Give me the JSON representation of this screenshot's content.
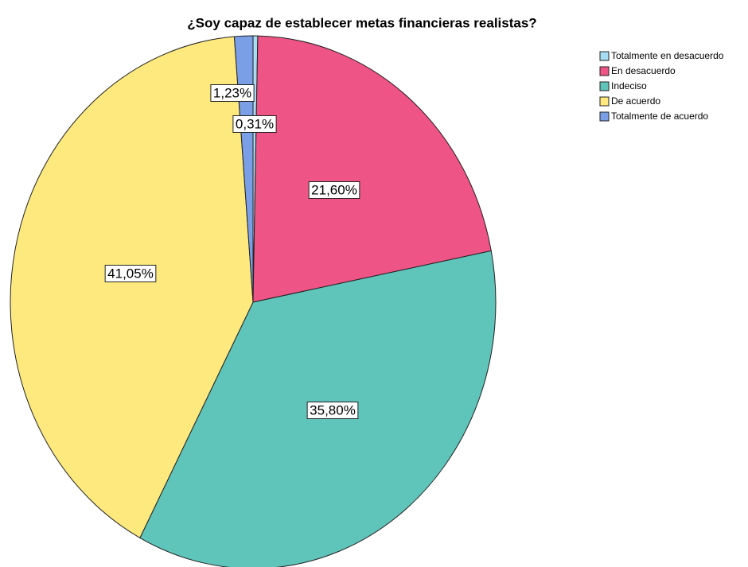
{
  "chart_data": {
    "type": "pie",
    "title": "¿Soy capaz de establecer metas financieras realistas?",
    "categories": [
      "Totalmente en desacuerdo",
      "En desacuerdo",
      "Indeciso",
      "De acuerdo",
      "Totalmente de acuerdo"
    ],
    "values": [
      0.31,
      21.6,
      35.8,
      41.05,
      1.23
    ],
    "value_labels": [
      "0,31%",
      "21,60%",
      "35,80%",
      "41,05%",
      "1,23%"
    ],
    "colors": [
      "#a8dcf2",
      "#ee5485",
      "#5fc4ba",
      "#fde97e",
      "#7a9fe6"
    ],
    "legend": "top-right"
  }
}
